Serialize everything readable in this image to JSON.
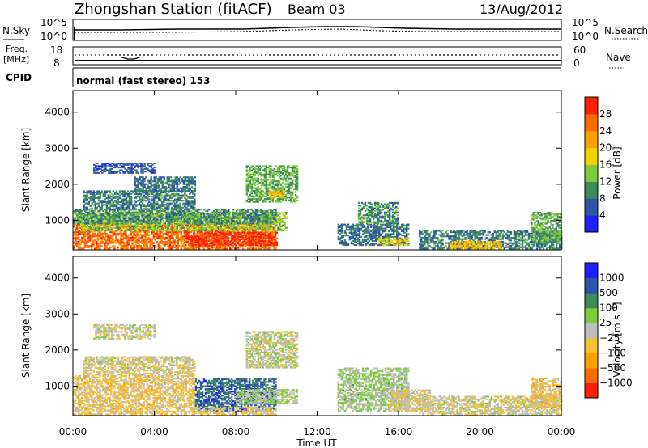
{
  "header": {
    "station": "Zhongshan Station (fitACF)",
    "beam": "Beam 03",
    "date": "13/Aug/2012"
  },
  "strips": {
    "nsky": {
      "label": "N.Sky",
      "ticks": [
        "10^5",
        "10^0"
      ]
    },
    "nsearch": {
      "label": "N.Search",
      "ticks": [
        "10^5",
        "10^0"
      ]
    },
    "freq": {
      "label_top": "Freq.",
      "label_bottom": "[MHz]",
      "ticks": [
        "18",
        "8"
      ]
    },
    "nave": {
      "label": "Nave",
      "ticks": [
        "60",
        "0"
      ]
    },
    "cpid": {
      "label": "CPID",
      "text": "normal (fast stereo) 153"
    }
  },
  "colors": {
    "power_scale": [
      "#1e1eff",
      "#2f55a8",
      "#3f8a5c",
      "#7ecb3b",
      "#f0d400",
      "#ffa200",
      "#ff6a00",
      "#ff1e00"
    ],
    "velocity_scale": [
      "#ff1e00",
      "#ff6a00",
      "#ffa200",
      "#f2c230",
      "#bdbdbd",
      "#7ecb3b",
      "#3f8a5c",
      "#2f55a8",
      "#1e1eff"
    ]
  },
  "chart_data": [
    {
      "type": "heatmap",
      "name": "power",
      "ylabel": "Slant Range [km]",
      "ylim": [
        180,
        4600
      ],
      "yticks": [
        "1000",
        "2000",
        "3000",
        "4000"
      ],
      "colorbar_label": "Power [dB]",
      "colorbar_ticks": [
        "4",
        "8",
        "12",
        "16",
        "20",
        "24",
        "28"
      ],
      "clim": [
        0,
        32
      ],
      "regions": [
        {
          "t": [
            0.0,
            10.0
          ],
          "r": [
            200,
            900
          ],
          "v": 26
        },
        {
          "t": [
            5.5,
            10.0
          ],
          "r": [
            300,
            650
          ],
          "v": 30
        },
        {
          "t": [
            0.2,
            10.5
          ],
          "r": [
            700,
            1200
          ],
          "v": 14
        },
        {
          "t": [
            0.0,
            10.0
          ],
          "r": [
            900,
            1300
          ],
          "v": 10
        },
        {
          "t": [
            0.5,
            6.0
          ],
          "r": [
            1300,
            1800
          ],
          "v": 9
        },
        {
          "t": [
            1.0,
            4.0
          ],
          "r": [
            2300,
            2600
          ],
          "v": 6
        },
        {
          "t": [
            3.0,
            6.0
          ],
          "r": [
            1800,
            2200
          ],
          "v": 8
        },
        {
          "t": [
            8.5,
            11.0
          ],
          "r": [
            1500,
            2500
          ],
          "v": 12
        },
        {
          "t": [
            9.6,
            10.4
          ],
          "r": [
            1600,
            1800
          ],
          "v": 20
        },
        {
          "t": [
            13.0,
            16.5
          ],
          "r": [
            300,
            900
          ],
          "v": 8
        },
        {
          "t": [
            14.0,
            16.0
          ],
          "r": [
            900,
            1500
          ],
          "v": 10
        },
        {
          "t": [
            15.0,
            16.5
          ],
          "r": [
            300,
            500
          ],
          "v": 18
        },
        {
          "t": [
            17.0,
            24.0
          ],
          "r": [
            200,
            700
          ],
          "v": 9
        },
        {
          "t": [
            18.5,
            21.0
          ],
          "r": [
            200,
            400
          ],
          "v": 20
        },
        {
          "t": [
            22.5,
            24.0
          ],
          "r": [
            400,
            1200
          ],
          "v": 12
        }
      ]
    },
    {
      "type": "heatmap",
      "name": "velocity",
      "ylabel": "Slant Range [km]",
      "ylim": [
        180,
        4600
      ],
      "yticks": [
        "1000",
        "2000",
        "3000",
        "4000"
      ],
      "colorbar_label": "Velocity [m s⁻¹]",
      "colorbar_ticks": [
        "1000",
        "500",
        "100",
        "25",
        "−25",
        "−100",
        "−500",
        "−1000"
      ],
      "clim": [
        -1500,
        1500
      ],
      "regions": [
        {
          "t": [
            0.0,
            6.0
          ],
          "r": [
            200,
            1300
          ],
          "v": -250
        },
        {
          "t": [
            6.0,
            10.0
          ],
          "r": [
            300,
            1200
          ],
          "v": 900
        },
        {
          "t": [
            6.0,
            10.0
          ],
          "r": [
            200,
            400
          ],
          "v": -200
        },
        {
          "t": [
            8.0,
            11.0
          ],
          "r": [
            500,
            900
          ],
          "v": 150
        },
        {
          "t": [
            0.5,
            6.0
          ],
          "r": [
            1300,
            1800
          ],
          "v": -100
        },
        {
          "t": [
            1.0,
            4.0
          ],
          "r": [
            2300,
            2700
          ],
          "v": 0
        },
        {
          "t": [
            8.5,
            11.0
          ],
          "r": [
            1500,
            2500
          ],
          "v": 5
        },
        {
          "t": [
            13.0,
            16.5
          ],
          "r": [
            300,
            1500
          ],
          "v": 180
        },
        {
          "t": [
            15.5,
            17.5
          ],
          "r": [
            300,
            900
          ],
          "v": -150
        },
        {
          "t": [
            17.0,
            24.0
          ],
          "r": [
            200,
            700
          ],
          "v": -80
        },
        {
          "t": [
            22.5,
            24.0
          ],
          "r": [
            400,
            1200
          ],
          "v": -300
        }
      ]
    }
  ],
  "xaxis": {
    "label": "Time UT",
    "tick_labels": [
      "00:00",
      "04:00",
      "08:00",
      "12:00",
      "16:00",
      "20:00",
      "00:00"
    ],
    "range": [
      0,
      24
    ]
  }
}
